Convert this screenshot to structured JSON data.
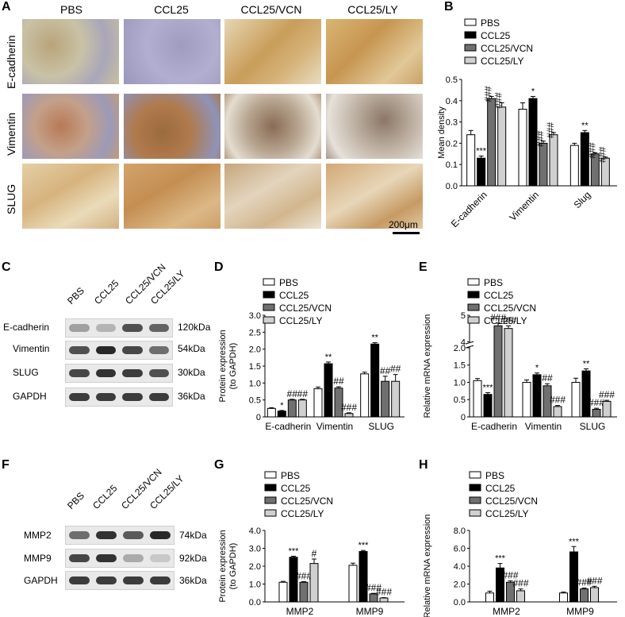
{
  "panels": {
    "A": "A",
    "B": "B",
    "C": "C",
    "D": "D",
    "E": "E",
    "F": "F",
    "G": "G",
    "H": "H"
  },
  "panelA": {
    "columns": [
      "PBS",
      "CCL25",
      "CCL25/VCN",
      "CCL25/LY"
    ],
    "rows": [
      "E-cadherin",
      "Vimentin",
      "SLUG"
    ],
    "scale_bar": "200μm"
  },
  "blotC": {
    "lanes": [
      "PBS",
      "CCL25",
      "CCL25/VCN",
      "CCL25/LY"
    ],
    "rows": [
      {
        "name": "E-cadherin",
        "kda": "120kDa",
        "intensity": [
          0.35,
          0.25,
          0.75,
          0.65
        ]
      },
      {
        "name": "Vimentin",
        "kda": "54kDa",
        "intensity": [
          0.75,
          0.95,
          0.8,
          0.6
        ]
      },
      {
        "name": "SLUG",
        "kda": "30kDa",
        "intensity": [
          0.8,
          0.9,
          0.85,
          0.75
        ]
      },
      {
        "name": "GAPDH",
        "kda": "36kDa",
        "intensity": [
          0.85,
          0.85,
          0.85,
          0.85
        ]
      }
    ]
  },
  "blotF": {
    "lanes": [
      "PBS",
      "CCL25",
      "CCL25/VCN",
      "CCL25/LY"
    ],
    "rows": [
      {
        "name": "MMP2",
        "kda": "74kDa",
        "intensity": [
          0.6,
          0.9,
          0.7,
          0.95
        ]
      },
      {
        "name": "MMP9",
        "kda": "92kDa",
        "intensity": [
          0.8,
          0.9,
          0.3,
          0.15
        ]
      },
      {
        "name": "GAPDH",
        "kda": "36kDa",
        "intensity": [
          0.85,
          0.85,
          0.85,
          0.85
        ]
      }
    ]
  },
  "colors": {
    "PBS": "#ffffff",
    "CCL25": "#000000",
    "CCL25/VCN": "#707070",
    "CCL25/LY": "#d0d0d0"
  },
  "chart_data": [
    {
      "id": "B",
      "type": "bar",
      "series_names": [
        "PBS",
        "CCL25",
        "CCL25/VCN",
        "CCL25/LY"
      ],
      "categories": [
        "E-cadherin",
        "Vimentin",
        "Slug"
      ],
      "values": [
        [
          0.24,
          0.13,
          0.41,
          0.37
        ],
        [
          0.36,
          0.41,
          0.2,
          0.24
        ],
        [
          0.19,
          0.25,
          0.15,
          0.13
        ]
      ],
      "errors": [
        [
          0.02,
          0.01,
          0.01,
          0.02
        ],
        [
          0.03,
          0.01,
          0.01,
          0.01
        ],
        [
          0.01,
          0.01,
          0.005,
          0.005
        ]
      ],
      "annotations": [
        [
          "",
          "***",
          "###",
          "###"
        ],
        [
          "",
          "*",
          "###",
          "###"
        ],
        [
          "",
          "**",
          "###",
          "###"
        ]
      ],
      "ylabel": "Mean density",
      "ylim": [
        0,
        0.5
      ],
      "yticks": [
        "0.0",
        "0.1",
        "0.2",
        "0.3",
        "0.4",
        "0.5"
      ],
      "rotated_xticks": true
    },
    {
      "id": "D",
      "type": "bar",
      "series_names": [
        "PBS",
        "CCL25",
        "CCL25/VCN",
        "CCL25/LY"
      ],
      "categories": [
        "E-cadherin",
        "Vimentin",
        "SLUG"
      ],
      "values": [
        [
          0.25,
          0.17,
          0.5,
          0.5
        ],
        [
          0.83,
          1.57,
          0.85,
          0.1
        ],
        [
          1.27,
          2.15,
          1.05,
          1.05
        ]
      ],
      "errors": [
        [
          0.02,
          0.02,
          0.02,
          0.02
        ],
        [
          0.05,
          0.05,
          0.04,
          0.02
        ],
        [
          0.05,
          0.04,
          0.15,
          0.2
        ]
      ],
      "annotations": [
        [
          "",
          "*",
          "##",
          "##"
        ],
        [
          "",
          "**",
          "##",
          "###"
        ],
        [
          "",
          "**",
          "##",
          "##"
        ]
      ],
      "ylabel": [
        "Protein expression",
        "(to GAPDH)"
      ],
      "ylim": [
        0,
        3.0
      ],
      "yticks": [
        "0",
        "0.5",
        "1.0",
        "1.5",
        "2.0",
        "2.5",
        "3.0"
      ]
    },
    {
      "id": "E",
      "type": "bar",
      "series_names": [
        "PBS",
        "CCL25",
        "CCL25/VCN",
        "CCL25/LY"
      ],
      "categories": [
        "E-cadherin",
        "Vimentin",
        "SLUG"
      ],
      "values": [
        [
          1.05,
          0.65,
          4.6,
          4.5
        ],
        [
          1.0,
          1.22,
          0.9,
          0.3
        ],
        [
          1.0,
          1.33,
          0.22,
          0.45
        ]
      ],
      "errors": [
        [
          0.06,
          0.05,
          0.1,
          0.1
        ],
        [
          0.07,
          0.05,
          0.06,
          0.03
        ],
        [
          0.12,
          0.06,
          0.03,
          0.03
        ]
      ],
      "annotations": [
        [
          "",
          "***",
          "###",
          "###"
        ],
        [
          "",
          "*",
          "##",
          "###"
        ],
        [
          "",
          "**",
          "###",
          "###"
        ]
      ],
      "ylabel": "Relative mRNA expression",
      "ylim": [
        0,
        5
      ],
      "yticks": [
        "0",
        "0.5",
        "1.0",
        "1.5",
        "2.0",
        "4",
        "5"
      ],
      "axis_break": true
    },
    {
      "id": "G",
      "type": "bar",
      "series_names": [
        "PBS",
        "CCL25",
        "CCL25/VCN",
        "CCL25/LY"
      ],
      "categories": [
        "MMP2",
        "MMP9"
      ],
      "values": [
        [
          1.1,
          2.5,
          1.1,
          2.15
        ],
        [
          2.05,
          2.82,
          0.45,
          0.22
        ]
      ],
      "errors": [
        [
          0.05,
          0.06,
          0.04,
          0.25
        ],
        [
          0.12,
          0.06,
          0.03,
          0.02
        ]
      ],
      "annotations": [
        [
          "",
          "***",
          "###",
          "#"
        ],
        [
          "",
          "***",
          "###",
          "###"
        ]
      ],
      "ylabel": [
        "Protein expression",
        "(to GAPDH)"
      ],
      "ylim": [
        0,
        4.0
      ],
      "yticks": [
        "0.0",
        "1.0",
        "2.0",
        "3.0",
        "4.0"
      ]
    },
    {
      "id": "H",
      "type": "bar",
      "series_names": [
        "PBS",
        "CCL25",
        "CCL25/VCN",
        "CCL25/LY"
      ],
      "categories": [
        "MMP2",
        "MMP9"
      ],
      "values": [
        [
          1.0,
          3.8,
          2.2,
          1.25
        ],
        [
          1.0,
          5.6,
          1.45,
          1.6
        ]
      ],
      "errors": [
        [
          0.2,
          0.5,
          0.15,
          0.2
        ],
        [
          0.1,
          0.6,
          0.1,
          0.15
        ]
      ],
      "annotations": [
        [
          "",
          "***",
          "###",
          "###"
        ],
        [
          "",
          "***",
          "###",
          "###"
        ]
      ],
      "ylabel": "Relative mRNA expression",
      "ylim": [
        0,
        8.0
      ],
      "yticks": [
        "0.0",
        "2.0",
        "4.0",
        "6.0",
        "8.0"
      ]
    }
  ]
}
